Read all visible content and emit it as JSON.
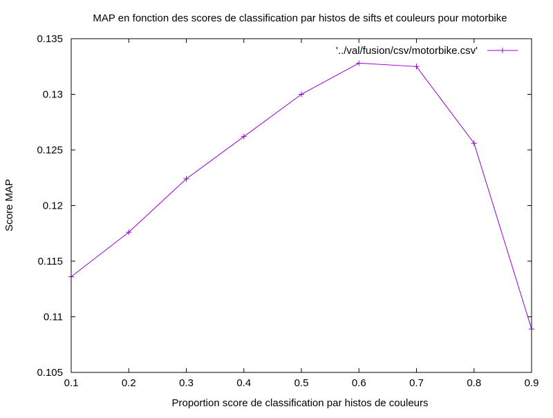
{
  "chart_data": {
    "type": "line",
    "title": "MAP en fonction des scores de classification par histos de sifts et couleurs pour motorbike",
    "xlabel": "Proportion score de classification par histos de couleurs",
    "ylabel": "Score MAP",
    "xlim": [
      0.1,
      0.9
    ],
    "ylim": [
      0.105,
      0.135
    ],
    "xticks": [
      0.1,
      0.2,
      0.3,
      0.4,
      0.5,
      0.6,
      0.7,
      0.8,
      0.9
    ],
    "yticks": [
      0.105,
      0.11,
      0.115,
      0.12,
      0.125,
      0.13,
      0.135
    ],
    "xtick_labels": [
      "0.1",
      "0.2",
      "0.3",
      "0.4",
      "0.5",
      "0.6",
      "0.7",
      "0.8",
      "0.9"
    ],
    "ytick_labels": [
      "0.105",
      "0.11",
      "0.115",
      "0.12",
      "0.125",
      "0.13",
      "0.135"
    ],
    "grid": false,
    "legend_position": "top-right",
    "series": [
      {
        "name": "'../val/fusion/csv/motorbike.csv'",
        "color": "#9400d3",
        "marker": "plus",
        "x": [
          0.1,
          0.2,
          0.3,
          0.4,
          0.5,
          0.6,
          0.7,
          0.8,
          0.9
        ],
        "y": [
          0.1136,
          0.1176,
          0.1224,
          0.1262,
          0.13,
          0.1328,
          0.1325,
          0.1256,
          0.1089
        ]
      }
    ]
  }
}
